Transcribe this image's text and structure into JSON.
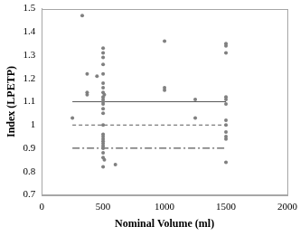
{
  "chart_data": {
    "type": "scatter",
    "x_label": "Nominal Volume (ml)",
    "y_label": "Index (LPETP)",
    "xlim": [
      0,
      2000
    ],
    "xticks": [
      0,
      500,
      1000,
      1500,
      2000
    ],
    "ylim": [
      0.7,
      1.5
    ],
    "yticks": [
      0.7,
      0.8,
      0.9,
      1,
      1.1,
      1.2,
      1.3,
      1.4,
      1.5
    ],
    "grid": false,
    "series": [
      {
        "color": "#808080",
        "marker": "circle",
        "x": [
          250,
          330,
          370,
          370,
          370,
          450,
          500,
          500,
          500,
          500,
          500,
          500,
          500,
          500,
          500,
          500,
          500,
          500,
          500,
          500,
          500,
          500,
          500,
          500,
          500,
          500,
          500,
          500,
          500,
          500,
          500,
          510,
          510,
          600,
          1000,
          1000,
          1000,
          1250,
          1250,
          1500,
          1500,
          1500,
          1500,
          1500,
          1500,
          1500,
          1500,
          1500,
          1500,
          1500,
          1500
        ],
        "values": [
          1.03,
          1.47,
          1.22,
          1.14,
          1.13,
          1.21,
          1.33,
          1.31,
          1.29,
          1.26,
          1.22,
          1.18,
          1.16,
          1.14,
          1.12,
          1.11,
          1.1,
          1.09,
          1.07,
          1.05,
          1.0,
          0.96,
          0.95,
          0.94,
          0.93,
          0.92,
          0.91,
          0.9,
          0.88,
          0.86,
          0.82,
          1.13,
          0.85,
          0.83,
          1.36,
          1.16,
          1.15,
          1.11,
          1.03,
          1.35,
          1.34,
          1.31,
          1.12,
          1.11,
          1.09,
          1.02,
          1.0,
          0.97,
          0.95,
          0.94,
          0.84
        ]
      },
      {
        "type": "line",
        "color": "#595959",
        "line_style": "solid",
        "x": [
          250,
          1500
        ],
        "values": [
          1.1,
          1.1
        ]
      },
      {
        "type": "line",
        "color": "#595959",
        "line_style": "dashed",
        "x": [
          250,
          1500
        ],
        "values": [
          1.0,
          1.0
        ]
      },
      {
        "type": "line",
        "color": "#595959",
        "line_style": "dashdot",
        "x": [
          250,
          1500
        ],
        "values": [
          0.9,
          0.9
        ]
      }
    ]
  }
}
